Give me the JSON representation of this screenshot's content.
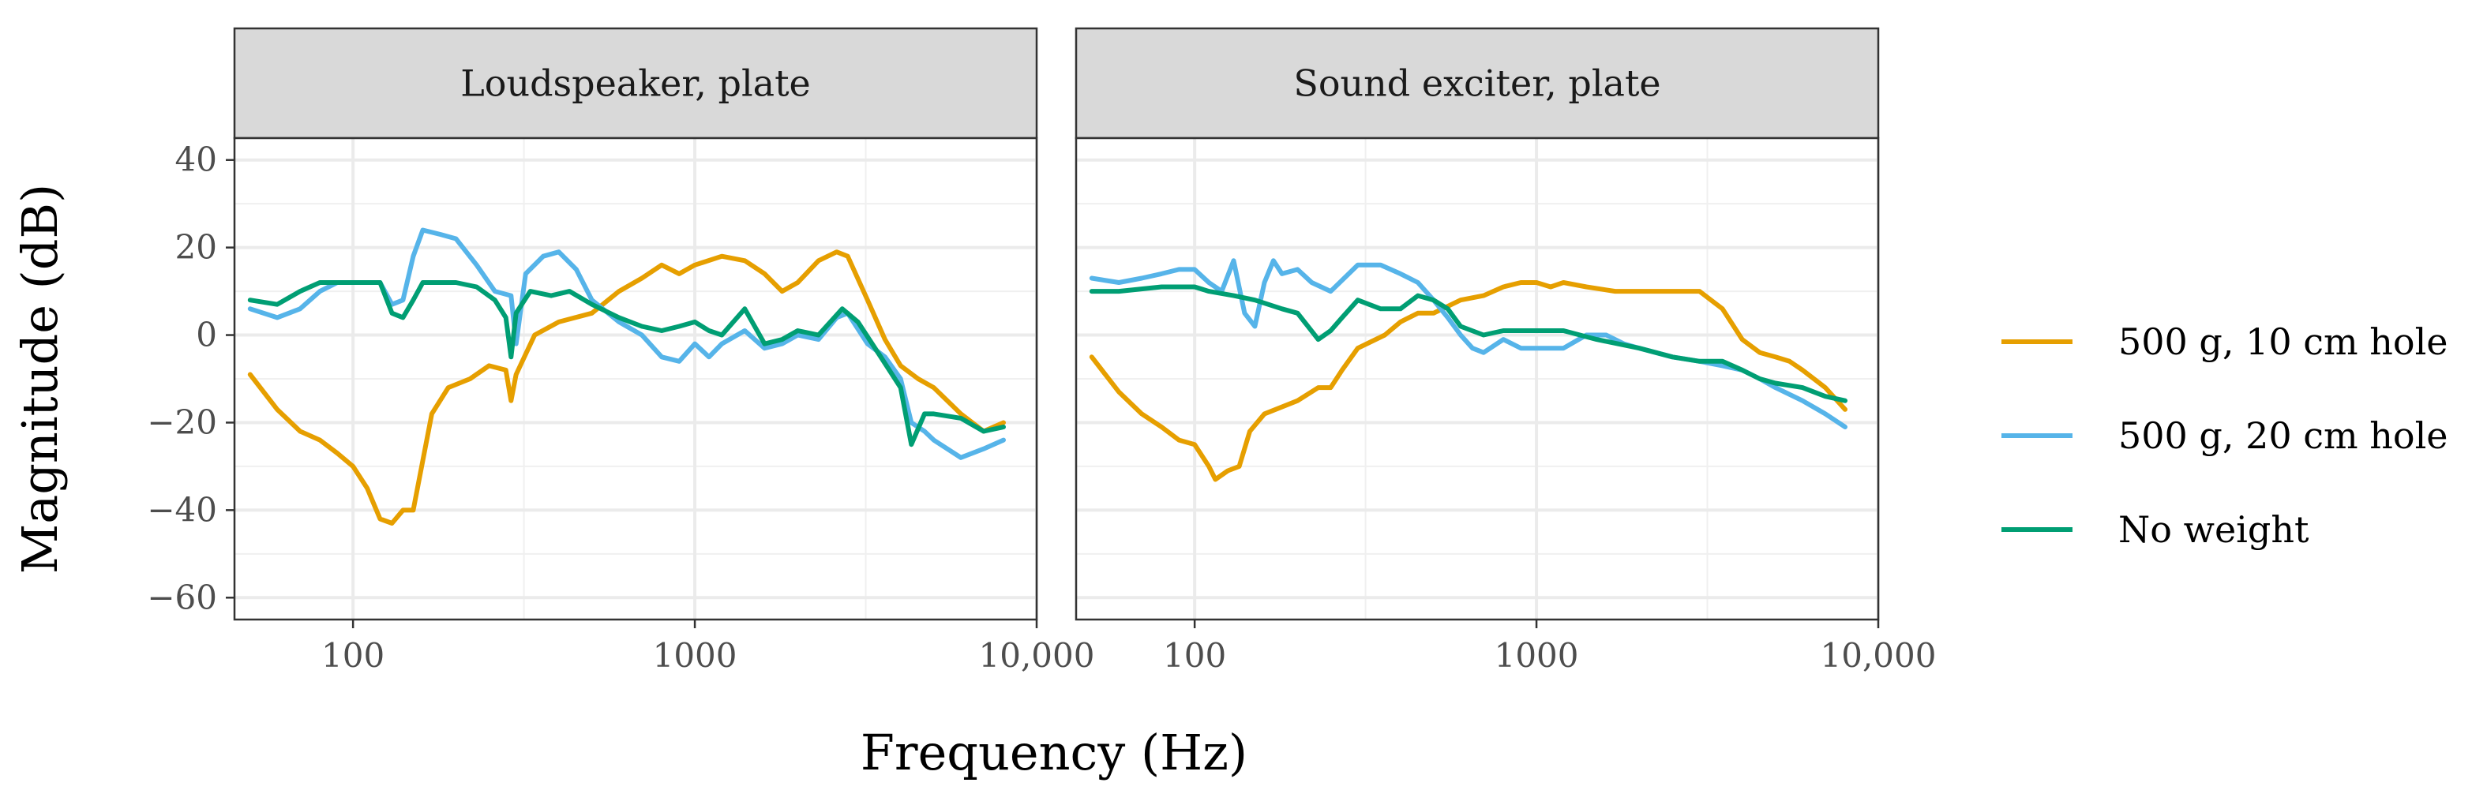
{
  "chart_data": {
    "type": "line",
    "x_scale": "log",
    "xlabel": "Frequency (Hz)",
    "ylabel": "Magnitude (dB)",
    "xlim": [
      45,
      10000
    ],
    "ylim": [
      -65,
      45
    ],
    "x_ticks": [
      100,
      1000,
      10000
    ],
    "x_tick_labels": [
      "100",
      "1000",
      "10,000"
    ],
    "y_ticks": [
      -60,
      -40,
      -20,
      0,
      20,
      40
    ],
    "y_tick_labels": [
      "−60",
      "−40",
      "−20",
      "0",
      "20",
      "40"
    ],
    "grid": true,
    "legend_position": "right",
    "series_styles": [
      {
        "name": "500 g, 10 cm hole",
        "color": "#E69F00"
      },
      {
        "name": "500 g, 20 cm hole",
        "color": "#56B4E9"
      },
      {
        "name": "No weight",
        "color": "#009E73"
      }
    ],
    "panels": [
      {
        "title": "Loudspeaker, plate",
        "series": [
          {
            "name": "500 g, 10 cm hole",
            "points": [
              [
                50,
                -9
              ],
              [
                60,
                -17
              ],
              [
                70,
                -22
              ],
              [
                80,
                -24
              ],
              [
                90,
                -27
              ],
              [
                100,
                -30
              ],
              [
                110,
                -35
              ],
              [
                120,
                -42
              ],
              [
                130,
                -43
              ],
              [
                140,
                -40
              ],
              [
                150,
                -40
              ],
              [
                170,
                -18
              ],
              [
                190,
                -12
              ],
              [
                220,
                -10
              ],
              [
                250,
                -7
              ],
              [
                280,
                -8
              ],
              [
                290,
                -15
              ],
              [
                300,
                -9
              ],
              [
                340,
                0
              ],
              [
                400,
                3
              ],
              [
                500,
                5
              ],
              [
                600,
                10
              ],
              [
                700,
                13
              ],
              [
                800,
                16
              ],
              [
                900,
                14
              ],
              [
                1000,
                16
              ],
              [
                1200,
                18
              ],
              [
                1400,
                17
              ],
              [
                1600,
                14
              ],
              [
                1800,
                10
              ],
              [
                2000,
                12
              ],
              [
                2300,
                17
              ],
              [
                2600,
                19
              ],
              [
                2800,
                18
              ],
              [
                3200,
                8
              ],
              [
                3600,
                -1
              ],
              [
                4000,
                -7
              ],
              [
                4500,
                -10
              ],
              [
                5000,
                -12
              ],
              [
                6000,
                -18
              ],
              [
                7000,
                -22
              ],
              [
                8000,
                -20
              ]
            ]
          },
          {
            "name": "500 g, 20 cm hole",
            "points": [
              [
                50,
                6
              ],
              [
                60,
                4
              ],
              [
                70,
                6
              ],
              [
                80,
                10
              ],
              [
                90,
                12
              ],
              [
                100,
                12
              ],
              [
                110,
                12
              ],
              [
                120,
                12
              ],
              [
                130,
                7
              ],
              [
                140,
                8
              ],
              [
                150,
                18
              ],
              [
                160,
                24
              ],
              [
                180,
                23
              ],
              [
                200,
                22
              ],
              [
                230,
                16
              ],
              [
                260,
                10
              ],
              [
                290,
                9
              ],
              [
                300,
                -2
              ],
              [
                320,
                14
              ],
              [
                360,
                18
              ],
              [
                400,
                19
              ],
              [
                450,
                15
              ],
              [
                500,
                8
              ],
              [
                600,
                3
              ],
              [
                700,
                0
              ],
              [
                800,
                -5
              ],
              [
                900,
                -6
              ],
              [
                1000,
                -2
              ],
              [
                1100,
                -5
              ],
              [
                1200,
                -2
              ],
              [
                1400,
                1
              ],
              [
                1600,
                -3
              ],
              [
                1800,
                -2
              ],
              [
                2000,
                0
              ],
              [
                2300,
                -1
              ],
              [
                2600,
                4
              ],
              [
                2800,
                5
              ],
              [
                3200,
                -2
              ],
              [
                3600,
                -5
              ],
              [
                4000,
                -10
              ],
              [
                4300,
                -20
              ],
              [
                4700,
                -22
              ],
              [
                5000,
                -24
              ],
              [
                6000,
                -28
              ],
              [
                7000,
                -26
              ],
              [
                8000,
                -24
              ]
            ]
          },
          {
            "name": "No weight",
            "points": [
              [
                50,
                8
              ],
              [
                60,
                7
              ],
              [
                70,
                10
              ],
              [
                80,
                12
              ],
              [
                100,
                12
              ],
              [
                120,
                12
              ],
              [
                130,
                5
              ],
              [
                140,
                4
              ],
              [
                150,
                8
              ],
              [
                160,
                12
              ],
              [
                200,
                12
              ],
              [
                230,
                11
              ],
              [
                260,
                8
              ],
              [
                280,
                4
              ],
              [
                290,
                -5
              ],
              [
                300,
                5
              ],
              [
                330,
                10
              ],
              [
                380,
                9
              ],
              [
                430,
                10
              ],
              [
                500,
                7
              ],
              [
                600,
                4
              ],
              [
                700,
                2
              ],
              [
                800,
                1
              ],
              [
                900,
                2
              ],
              [
                1000,
                3
              ],
              [
                1100,
                1
              ],
              [
                1200,
                0
              ],
              [
                1400,
                6
              ],
              [
                1600,
                -2
              ],
              [
                1800,
                -1
              ],
              [
                2000,
                1
              ],
              [
                2300,
                0
              ],
              [
                2700,
                6
              ],
              [
                3000,
                3
              ],
              [
                3500,
                -5
              ],
              [
                4000,
                -12
              ],
              [
                4300,
                -25
              ],
              [
                4700,
                -18
              ],
              [
                5000,
                -18
              ],
              [
                6000,
                -19
              ],
              [
                7000,
                -22
              ],
              [
                8000,
                -21
              ]
            ]
          }
        ]
      },
      {
        "title": "Sound exciter, plate",
        "series": [
          {
            "name": "500 g, 10 cm hole",
            "points": [
              [
                50,
                -5
              ],
              [
                60,
                -13
              ],
              [
                70,
                -18
              ],
              [
                80,
                -21
              ],
              [
                90,
                -24
              ],
              [
                100,
                -25
              ],
              [
                110,
                -30
              ],
              [
                115,
                -33
              ],
              [
                125,
                -31
              ],
              [
                135,
                -30
              ],
              [
                145,
                -22
              ],
              [
                160,
                -18
              ],
              [
                200,
                -15
              ],
              [
                230,
                -12
              ],
              [
                250,
                -12
              ],
              [
                270,
                -8
              ],
              [
                300,
                -3
              ],
              [
                360,
                0
              ],
              [
                400,
                3
              ],
              [
                450,
                5
              ],
              [
                500,
                5
              ],
              [
                600,
                8
              ],
              [
                700,
                9
              ],
              [
                800,
                11
              ],
              [
                900,
                12
              ],
              [
                1000,
                12
              ],
              [
                1100,
                11
              ],
              [
                1200,
                12
              ],
              [
                1400,
                11
              ],
              [
                1700,
                10
              ],
              [
                2000,
                10
              ],
              [
                2500,
                10
              ],
              [
                3000,
                10
              ],
              [
                3500,
                6
              ],
              [
                4000,
                -1
              ],
              [
                4500,
                -4
              ],
              [
                5000,
                -5
              ],
              [
                5500,
                -6
              ],
              [
                6000,
                -8
              ],
              [
                7000,
                -12
              ],
              [
                8000,
                -17
              ]
            ]
          },
          {
            "name": "500 g, 20 cm hole",
            "points": [
              [
                50,
                13
              ],
              [
                60,
                12
              ],
              [
                70,
                13
              ],
              [
                80,
                14
              ],
              [
                90,
                15
              ],
              [
                100,
                15
              ],
              [
                110,
                12
              ],
              [
                120,
                10
              ],
              [
                130,
                17
              ],
              [
                140,
                5
              ],
              [
                150,
                2
              ],
              [
                160,
                12
              ],
              [
                170,
                17
              ],
              [
                180,
                14
              ],
              [
                200,
                15
              ],
              [
                220,
                12
              ],
              [
                250,
                10
              ],
              [
                300,
                16
              ],
              [
                350,
                16
              ],
              [
                400,
                14
              ],
              [
                450,
                12
              ],
              [
                500,
                8
              ],
              [
                550,
                4
              ],
              [
                600,
                0
              ],
              [
                650,
                -3
              ],
              [
                700,
                -4
              ],
              [
                800,
                -1
              ],
              [
                900,
                -3
              ],
              [
                1000,
                -3
              ],
              [
                1200,
                -3
              ],
              [
                1400,
                0
              ],
              [
                1600,
                0
              ],
              [
                1800,
                -2
              ],
              [
                2000,
                -3
              ],
              [
                2500,
                -5
              ],
              [
                3000,
                -6
              ],
              [
                3500,
                -7
              ],
              [
                4000,
                -8
              ],
              [
                4500,
                -10
              ],
              [
                5000,
                -12
              ],
              [
                6000,
                -15
              ],
              [
                7000,
                -18
              ],
              [
                8000,
                -21
              ]
            ]
          },
          {
            "name": "No weight",
            "points": [
              [
                50,
                10
              ],
              [
                60,
                10
              ],
              [
                80,
                11
              ],
              [
                100,
                11
              ],
              [
                110,
                10
              ],
              [
                130,
                9
              ],
              [
                150,
                8
              ],
              [
                180,
                6
              ],
              [
                200,
                5
              ],
              [
                230,
                -1
              ],
              [
                250,
                1
              ],
              [
                270,
                4
              ],
              [
                300,
                8
              ],
              [
                350,
                6
              ],
              [
                400,
                6
              ],
              [
                450,
                9
              ],
              [
                500,
                8
              ],
              [
                550,
                6
              ],
              [
                600,
                2
              ],
              [
                700,
                0
              ],
              [
                800,
                1
              ],
              [
                1000,
                1
              ],
              [
                1200,
                1
              ],
              [
                1500,
                -1
              ],
              [
                2000,
                -3
              ],
              [
                2500,
                -5
              ],
              [
                3000,
                -6
              ],
              [
                3500,
                -6
              ],
              [
                4000,
                -8
              ],
              [
                4500,
                -10
              ],
              [
                5000,
                -11
              ],
              [
                6000,
                -12
              ],
              [
                7000,
                -14
              ],
              [
                8000,
                -15
              ]
            ]
          }
        ]
      }
    ]
  }
}
